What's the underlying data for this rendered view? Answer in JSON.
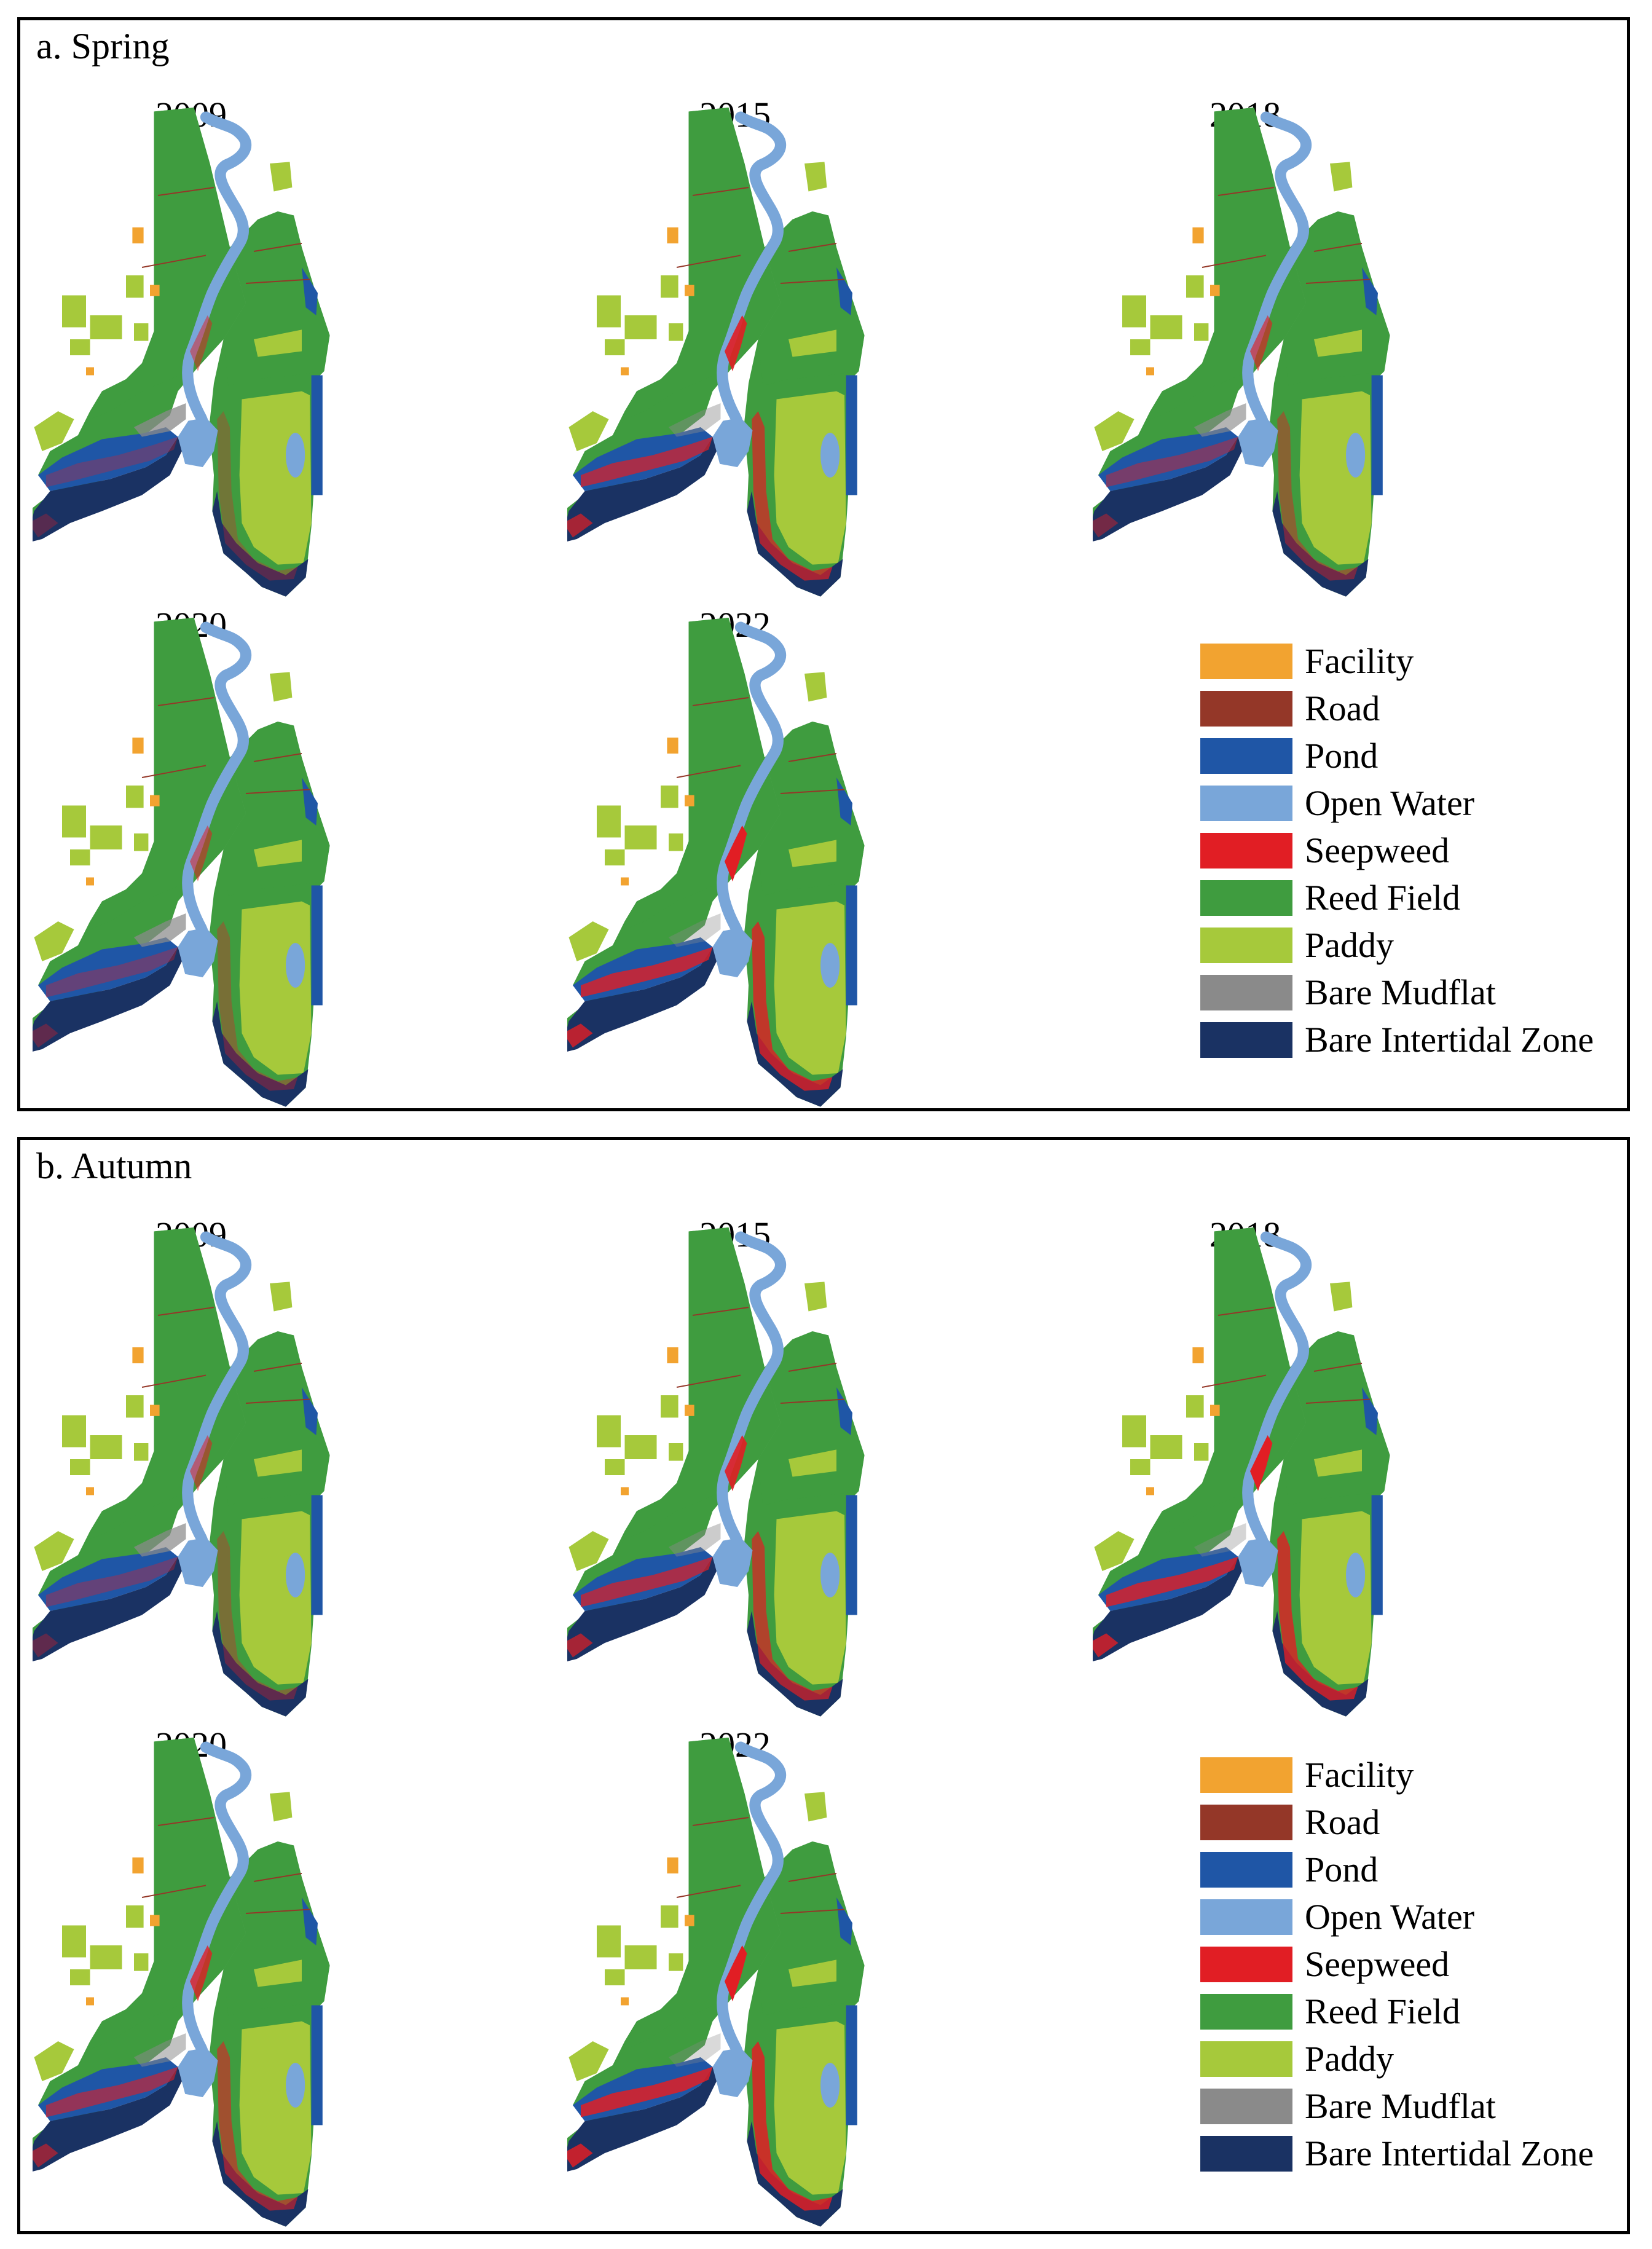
{
  "colors": {
    "facility": "#F2A330",
    "road": "#943728",
    "pond": "#1F56A6",
    "open_water": "#79A6D9",
    "seepweed": "#E11E24",
    "reed_field": "#3F9C3F",
    "paddy": "#A6C93B",
    "bare_mudflat": "#8A8A8A",
    "bare_intertidal_zone": "#1A3263"
  },
  "panels": [
    {
      "title": "a. Spring",
      "maps": [
        {
          "year": "2009",
          "seepweed_level": 0.3
        },
        {
          "year": "2015",
          "seepweed_level": 0.7
        },
        {
          "year": "2018",
          "seepweed_level": 0.45
        },
        {
          "year": "2020",
          "seepweed_level": 0.35
        },
        {
          "year": "2022",
          "seepweed_level": 0.8
        }
      ]
    },
    {
      "title": "b. Autumn",
      "maps": [
        {
          "year": "2009",
          "seepweed_level": 0.35
        },
        {
          "year": "2015",
          "seepweed_level": 0.7
        },
        {
          "year": "2018",
          "seepweed_level": 0.8
        },
        {
          "year": "2020",
          "seepweed_level": 0.6
        },
        {
          "year": "2022",
          "seepweed_level": 0.85
        }
      ]
    }
  ],
  "legend": [
    {
      "label": "Facility",
      "color": "#F2A330"
    },
    {
      "label": "Road",
      "color": "#943728"
    },
    {
      "label": "Pond",
      "color": "#1F56A6"
    },
    {
      "label": "Open Water",
      "color": "#79A6D9"
    },
    {
      "label": "Seepweed",
      "color": "#E11E24"
    },
    {
      "label": "Reed Field",
      "color": "#3F9C3F"
    },
    {
      "label": "Paddy",
      "color": "#A6C93B"
    },
    {
      "label": "Bare Mudflat",
      "color": "#8A8A8A"
    },
    {
      "label": "Bare Intertidal Zone",
      "color": "#1A3263"
    }
  ]
}
